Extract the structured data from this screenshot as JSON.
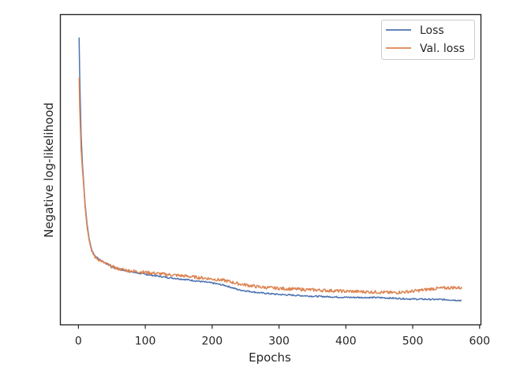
{
  "chart_data": {
    "type": "line",
    "title": "",
    "xlabel": "Epochs",
    "ylabel": "Negative log-likelihood",
    "xlim": [
      -27,
      602
    ],
    "ylim": [
      0,
      100
    ],
    "x_ticks": [
      0,
      100,
      200,
      300,
      400,
      500,
      600
    ],
    "x_tick_labels": [
      "0",
      "100",
      "200",
      "300",
      "400",
      "500",
      "600"
    ],
    "y_ticks_visible": false,
    "grid": false,
    "legend_position": "top-right",
    "series": [
      {
        "name": "Loss",
        "color": "#4c72b0",
        "x": [
          1,
          2,
          4,
          6,
          8,
          10,
          13,
          16,
          20,
          25,
          30,
          40,
          50,
          60,
          75,
          100,
          130,
          160,
          200,
          220,
          240,
          270,
          300,
          350,
          400,
          450,
          500,
          550,
          573
        ],
        "values": [
          96,
          82,
          62,
          52,
          45,
          38,
          31,
          26,
          22,
          20,
          19,
          17.6,
          16.3,
          15.4,
          14.6,
          13.6,
          12.6,
          11.8,
          10.6,
          9.7,
          8.2,
          7.2,
          6.6,
          6.0,
          5.6,
          5.5,
          5.0,
          4.8,
          4.5
        ]
      },
      {
        "name": "Val. loss",
        "color": "#dd8452",
        "x": [
          1,
          2,
          4,
          6,
          8,
          10,
          13,
          16,
          20,
          25,
          30,
          40,
          50,
          60,
          75,
          100,
          130,
          160,
          200,
          220,
          240,
          270,
          300,
          350,
          400,
          450,
          470,
          500,
          530,
          560,
          573
        ],
        "values": [
          82,
          71,
          57,
          50,
          44,
          37,
          30,
          25.5,
          21.5,
          19.6,
          18.8,
          17.4,
          16.3,
          15.5,
          14.9,
          14.3,
          13.6,
          13.0,
          12.0,
          11.4,
          10.3,
          9.2,
          8.7,
          8.2,
          7.7,
          7.4,
          7.2,
          7.7,
          8.6,
          9.0,
          8.9
        ]
      }
    ]
  }
}
